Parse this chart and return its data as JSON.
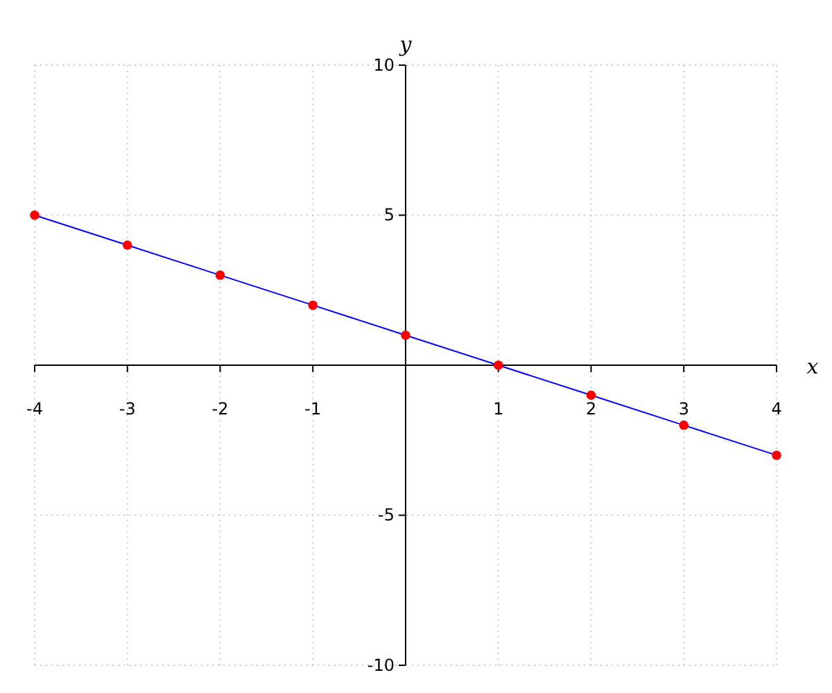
{
  "chart_data": {
    "type": "line",
    "xlabel": "x",
    "ylabel": "y",
    "x": [
      -4,
      -3,
      -2,
      -1,
      0,
      1,
      2,
      3,
      4
    ],
    "series": [
      {
        "color": "#0000ff",
        "values": [
          5,
          4,
          3,
          2,
          1,
          0,
          -1,
          -2,
          -3
        ],
        "marker": "none"
      },
      {
        "type": "scatter",
        "color": "#ff0000",
        "values": [
          5,
          4,
          3,
          2,
          1,
          0,
          -1,
          -2,
          -3
        ],
        "marker": "circle"
      }
    ],
    "xlim": [
      -4,
      4
    ],
    "ylim": [
      -10,
      10
    ],
    "xticks": [
      -4,
      -3,
      -2,
      -1,
      1,
      2,
      3,
      4
    ],
    "yticks": [
      -10,
      -5,
      5,
      10
    ],
    "grid": true
  }
}
